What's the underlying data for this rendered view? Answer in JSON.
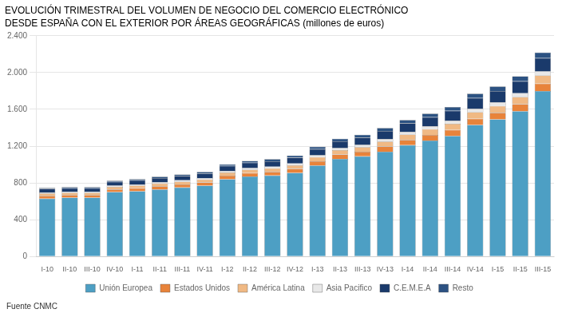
{
  "chart_data": {
    "type": "bar",
    "stacked": true,
    "title": "EVOLUCIÓN TRIMESTRAL DEL VOLUMEN DE NEGOCIO DEL COMERCIO ELECTRÓNICO",
    "subtitle": "DESDE ESPAÑA CON EL EXTERIOR POR ÁREAS GEOGRÁFICAS (millones de euros)",
    "annotations": [
      "Fuente CNMC"
    ],
    "categories": [
      "I-10",
      "II-10",
      "III-10",
      "IV-10",
      "I-11",
      "II-11",
      "III-11",
      "IV-11",
      "I-12",
      "II-12",
      "III-12",
      "IV-12",
      "I-13",
      "II-13",
      "III-13",
      "IV-13",
      "I-14",
      "II-14",
      "III-14",
      "IV-14",
      "I-15",
      "II-15",
      "III-15"
    ],
    "series": [
      {
        "name": "Unión Europea",
        "color": "#4d9fc4",
        "values": [
          630,
          640,
          640,
          700,
          710,
          730,
          750,
          770,
          840,
          870,
          880,
          910,
          990,
          1060,
          1090,
          1140,
          1210,
          1260,
          1310,
          1430,
          1490,
          1580,
          1800
        ]
      },
      {
        "name": "Estados Unidos",
        "color": "#e8833a",
        "values": [
          30,
          28,
          28,
          30,
          32,
          33,
          33,
          35,
          38,
          38,
          40,
          42,
          45,
          48,
          50,
          55,
          58,
          62,
          65,
          68,
          72,
          75,
          80
        ]
      },
      {
        "name": "América Latina",
        "color": "#f0b984",
        "values": [
          25,
          25,
          25,
          27,
          28,
          30,
          30,
          32,
          35,
          36,
          38,
          40,
          45,
          48,
          50,
          55,
          58,
          62,
          68,
          72,
          75,
          80,
          88
        ]
      },
      {
        "name": "Asia Pacifico",
        "color": "#e8e8e8",
        "values": [
          12,
          12,
          12,
          13,
          14,
          14,
          15,
          16,
          17,
          17,
          18,
          19,
          20,
          22,
          24,
          26,
          28,
          30,
          33,
          35,
          38,
          40,
          44
        ]
      },
      {
        "name": "C.E.M.E.A",
        "color": "#1a3a6b",
        "values": [
          38,
          38,
          38,
          42,
          44,
          46,
          48,
          50,
          55,
          58,
          60,
          63,
          68,
          75,
          80,
          88,
          95,
          100,
          108,
          118,
          125,
          130,
          145
        ]
      },
      {
        "name": "Resto",
        "color": "#2c5282",
        "values": [
          12,
          12,
          12,
          13,
          14,
          15,
          16,
          17,
          18,
          20,
          22,
          23,
          25,
          28,
          30,
          33,
          36,
          40,
          42,
          48,
          50,
          55,
          62
        ]
      }
    ],
    "ylim": [
      0,
      2400
    ],
    "yticks": [
      0,
      400,
      800,
      {
        "value": 1200,
        "label": "1.200"
      },
      {
        "value": 1600,
        "label": "1.600"
      },
      {
        "value": 2000,
        "label": "2.000"
      },
      {
        "value": 2400,
        "label": "2.400"
      }
    ],
    "grid": true,
    "legend": "bottom"
  }
}
